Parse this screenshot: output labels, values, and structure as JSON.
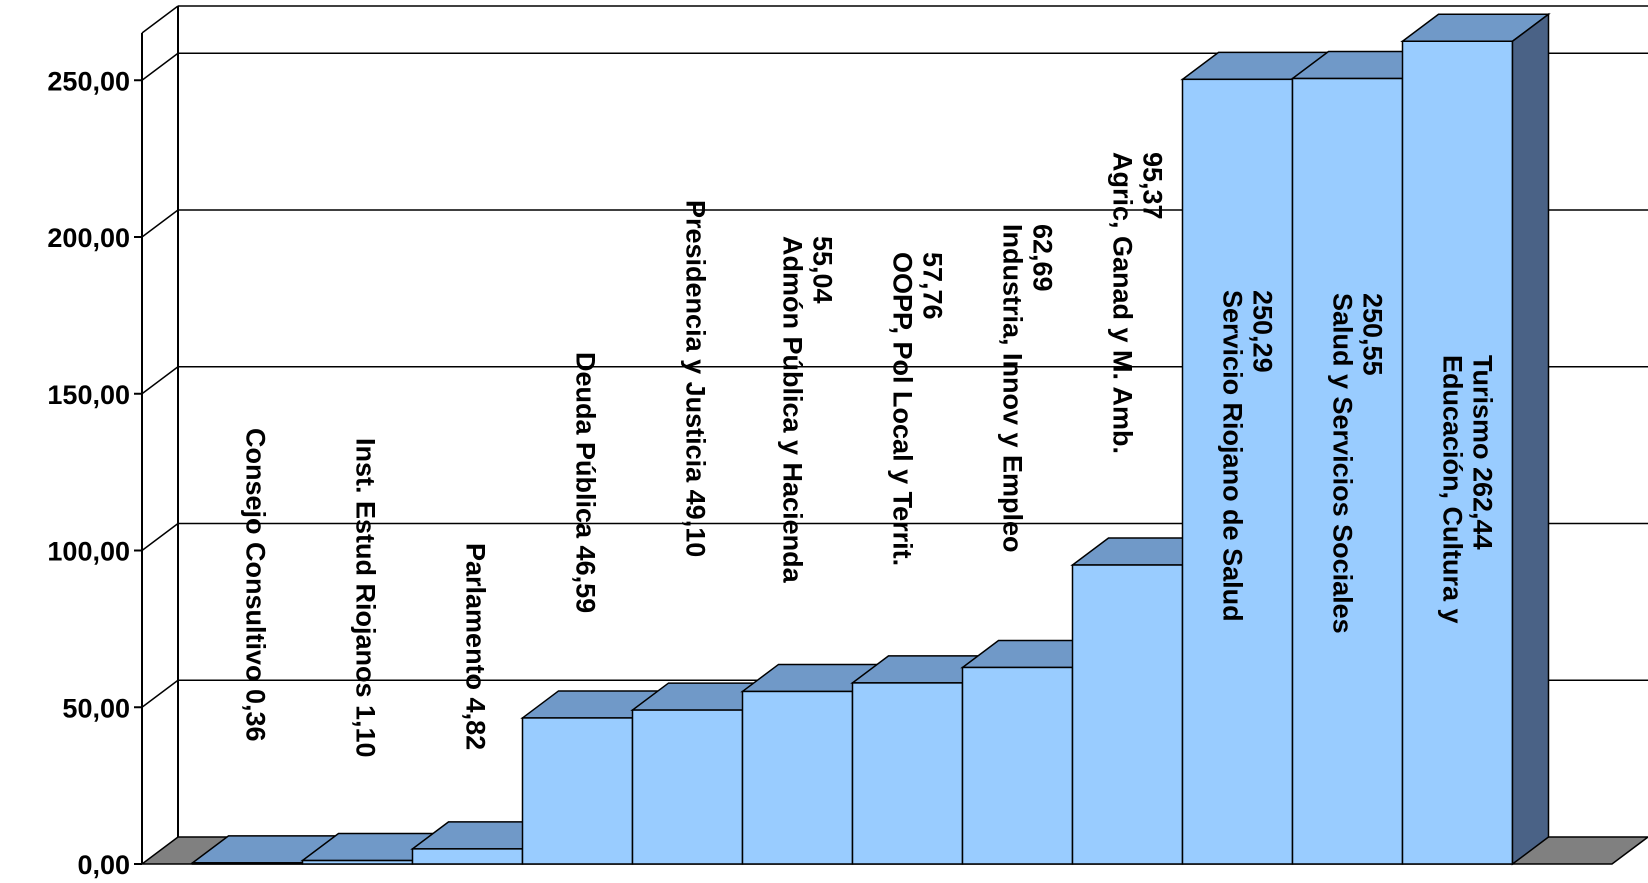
{
  "chart_data": {
    "type": "bar",
    "title": "",
    "xlabel": "",
    "ylabel": "",
    "ylim": [
      0,
      275
    ],
    "yticks": [
      "0,00",
      "50,00",
      "100,00",
      "150,00",
      "200,00",
      "250,00"
    ],
    "ytick_values": [
      0,
      50,
      100,
      150,
      200,
      250
    ],
    "grid": true,
    "legend": "none",
    "three_d": true,
    "colors": {
      "front": "#99ccff",
      "top": "#7099c8",
      "side": "#4a6286",
      "floor": "#808080",
      "grid": "#000000"
    },
    "bars": [
      {
        "label_lines": [
          "Consejo Consultivo  0,36"
        ],
        "value": 0.36
      },
      {
        "label_lines": [
          "Inst. Estud Riojanos  1,10"
        ],
        "value": 1.1
      },
      {
        "label_lines": [
          "Parlamento  4,82"
        ],
        "value": 4.82
      },
      {
        "label_lines": [
          "Deuda Pública  46,59"
        ],
        "value": 46.59
      },
      {
        "label_lines": [
          "Presidencia y Justicia   49,10"
        ],
        "value": 49.1
      },
      {
        "label_lines": [
          "Admón Pública y Hacienda",
          "55,04"
        ],
        "value": 55.04
      },
      {
        "label_lines": [
          "OOPP, Pol Local y Territ.",
          "57,76"
        ],
        "value": 57.76
      },
      {
        "label_lines": [
          "Industria, Innov y Empleo",
          "62,69"
        ],
        "value": 62.69
      },
      {
        "label_lines": [
          "Agric, Ganad y M. Amb.",
          "95,37"
        ],
        "value": 95.37
      },
      {
        "label_lines": [
          "Servicio Riojano de Salud",
          "250,29"
        ],
        "value": 250.29
      },
      {
        "label_lines": [
          "Salud y Servicios Sociales",
          "250,55"
        ],
        "value": 250.55
      },
      {
        "label_lines": [
          "Educación, Cultura y",
          "Turismo   262,44"
        ],
        "value": 262.44
      }
    ]
  }
}
